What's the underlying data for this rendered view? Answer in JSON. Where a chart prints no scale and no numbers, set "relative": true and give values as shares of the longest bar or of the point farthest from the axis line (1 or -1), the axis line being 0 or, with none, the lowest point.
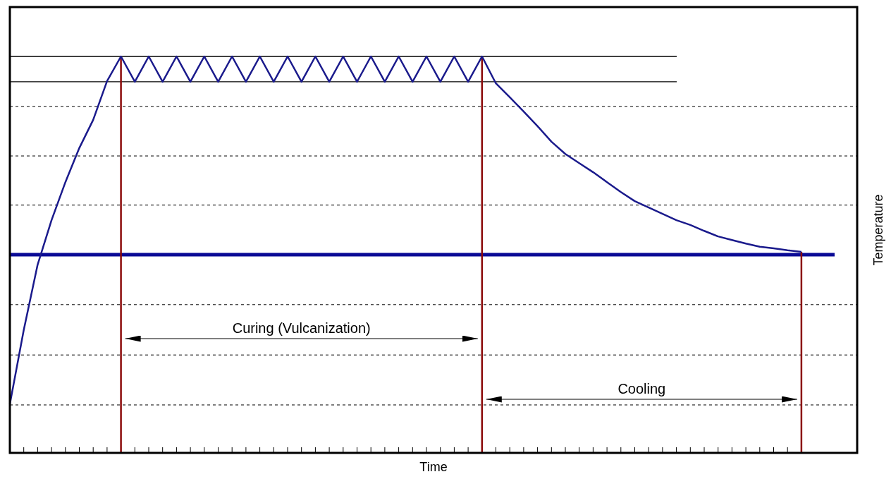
{
  "chart_data": {
    "type": "line",
    "relative": true,
    "xlabel": "Time",
    "ylabel": "Temperature",
    "marker": "none",
    "categories": [
      null,
      null,
      null,
      null,
      null,
      null,
      null,
      null,
      null,
      null,
      null,
      null,
      null,
      null,
      null,
      null,
      null,
      null,
      null,
      null,
      null,
      null,
      null,
      null,
      null,
      null,
      null,
      null,
      null,
      null,
      null,
      null,
      null,
      null,
      null,
      null,
      null,
      null,
      null,
      null,
      null,
      null,
      null,
      null,
      null,
      null,
      null,
      null,
      null,
      null,
      null,
      null,
      null,
      null,
      null,
      null,
      null,
      null
    ],
    "series": [
      {
        "color": "#1a1a8c",
        "values": [
          0.123,
          0.31,
          0.475,
          0.587,
          0.683,
          0.769,
          0.84,
          0.938,
          1,
          0.936,
          1,
          0.936,
          1,
          0.936,
          1,
          0.936,
          1,
          0.936,
          1,
          0.936,
          1,
          0.936,
          1,
          0.936,
          1,
          0.936,
          1,
          0.936,
          1,
          0.936,
          1,
          0.936,
          1,
          0.936,
          1,
          0.932,
          0.897,
          0.861,
          0.824,
          0.785,
          0.754,
          0.731,
          0.708,
          0.683,
          0.658,
          0.635,
          0.619,
          0.603,
          0.587,
          0.575,
          0.56,
          0.546,
          0.537,
          0.528,
          0.52,
          0.516,
          0.511,
          0.507
        ]
      }
    ],
    "ref_lines": [
      {
        "axis": "y",
        "value": 1,
        "line_style": "solid",
        "color": "#000000"
      },
      {
        "axis": "y",
        "value": 0.936,
        "line_style": "solid",
        "color": "#000000"
      },
      {
        "axis": "y",
        "value": 0.5,
        "line_style": "solid",
        "color": "#0a0a96"
      },
      {
        "axis": "y",
        "value": 0.874,
        "line_style": "dashed",
        "color": "#000000"
      },
      {
        "axis": "y",
        "value": 0.749,
        "line_style": "dashed",
        "color": "#000000"
      },
      {
        "axis": "y",
        "value": 0.625,
        "line_style": "dashed",
        "color": "#000000"
      },
      {
        "axis": "y",
        "value": 0.374,
        "line_style": "dashed",
        "color": "#000000"
      },
      {
        "axis": "y",
        "value": 0.247,
        "line_style": "dashed",
        "color": "#000000"
      },
      {
        "axis": "y",
        "value": 0.121,
        "line_style": "dashed",
        "color": "#000000"
      }
    ],
    "annotations": [
      "Curing (Vulcanization)",
      "Cooling"
    ]
  }
}
